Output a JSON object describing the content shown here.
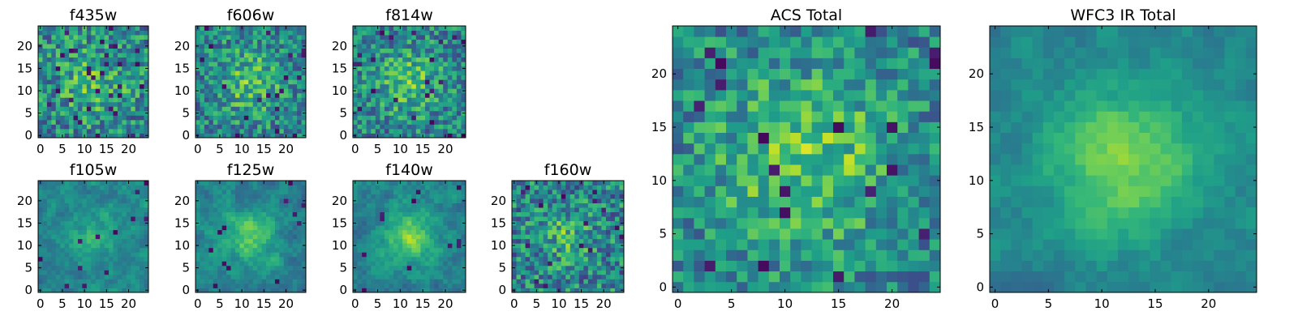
{
  "chart_data": [
    {
      "type": "heatmap",
      "title": "f435w",
      "xticks": [
        "0",
        "5",
        "10",
        "15",
        "20"
      ],
      "yticks": [
        "0",
        "5",
        "10",
        "15",
        "20"
      ],
      "xlim": [
        -0.5,
        24.5
      ],
      "ylim": [
        -0.5,
        24.5
      ],
      "grid_size": [
        25,
        25
      ],
      "colormap": "viridis",
      "description": "noisy pixel map with no clear central source",
      "values": []
    },
    {
      "type": "heatmap",
      "title": "f606w",
      "xticks": [
        "0",
        "5",
        "10",
        "15",
        "20"
      ],
      "yticks": [
        "0",
        "5",
        "10",
        "15",
        "20"
      ],
      "xlim": [
        -0.5,
        24.5
      ],
      "ylim": [
        -0.5,
        24.5
      ],
      "grid_size": [
        25,
        25
      ],
      "colormap": "viridis",
      "description": "noisy pixel map with faint central brightening",
      "values": []
    },
    {
      "type": "heatmap",
      "title": "f814w",
      "xticks": [
        "0",
        "5",
        "10",
        "15",
        "20"
      ],
      "yticks": [
        "0",
        "5",
        "10",
        "15",
        "20"
      ],
      "xlim": [
        -0.5,
        24.5
      ],
      "ylim": [
        -0.5,
        24.5
      ],
      "grid_size": [
        25,
        25
      ],
      "colormap": "viridis",
      "description": "noisy pixel map with faint central brightening",
      "values": []
    },
    {
      "type": "heatmap",
      "title": "f105w",
      "xticks": [
        "0",
        "5",
        "10",
        "15",
        "20"
      ],
      "yticks": [
        "0",
        "5",
        "10",
        "15",
        "20"
      ],
      "xlim": [
        -0.5,
        24.5
      ],
      "ylim": [
        -0.5,
        24.5
      ],
      "grid_size": [
        25,
        25
      ],
      "colormap": "viridis",
      "description": "smoother map with central source",
      "values": []
    },
    {
      "type": "heatmap",
      "title": "f125w",
      "xticks": [
        "0",
        "5",
        "10",
        "15",
        "20"
      ],
      "yticks": [
        "0",
        "5",
        "10",
        "15",
        "20"
      ],
      "xlim": [
        -0.5,
        24.5
      ],
      "ylim": [
        -0.5,
        24.5
      ],
      "grid_size": [
        25,
        25
      ],
      "colormap": "viridis",
      "description": "smoother map with bright central source",
      "values": []
    },
    {
      "type": "heatmap",
      "title": "f140w",
      "xticks": [
        "0",
        "5",
        "10",
        "15",
        "20"
      ],
      "yticks": [
        "0",
        "5",
        "10",
        "15",
        "20"
      ],
      "xlim": [
        -0.5,
        24.5
      ],
      "ylim": [
        -0.5,
        24.5
      ],
      "grid_size": [
        25,
        25
      ],
      "colormap": "viridis",
      "description": "smoother map with bright central source",
      "values": []
    },
    {
      "type": "heatmap",
      "title": "f160w",
      "xticks": [
        "0",
        "5",
        "10",
        "15",
        "20"
      ],
      "yticks": [
        "0",
        "5",
        "10",
        "15",
        "20"
      ],
      "xlim": [
        -0.5,
        24.5
      ],
      "ylim": [
        -0.5,
        24.5
      ],
      "grid_size": [
        25,
        25
      ],
      "colormap": "viridis",
      "description": "noisy map with moderate central source",
      "values": []
    },
    {
      "type": "heatmap",
      "title": "ACS Total",
      "xticks": [
        "0",
        "5",
        "10",
        "15",
        "20"
      ],
      "yticks": [
        "0",
        "5",
        "10",
        "15",
        "20"
      ],
      "xlim": [
        -0.5,
        24.5
      ],
      "ylim": [
        -0.5,
        24.5
      ],
      "grid_size": [
        25,
        25
      ],
      "colormap": "viridis",
      "description": "blocky map, brightest near (12,12)",
      "values": []
    },
    {
      "type": "heatmap",
      "title": "WFC3 IR Total",
      "xticks": [
        "0",
        "5",
        "10",
        "15",
        "20"
      ],
      "yticks": [
        "0",
        "5",
        "10",
        "15",
        "20"
      ],
      "xlim": [
        -0.5,
        24.5
      ],
      "ylim": [
        -0.5,
        24.5
      ],
      "grid_size": [
        25,
        25
      ],
      "colormap": "viridis",
      "description": "smooth map, brightest near (12,12), dark patch near (10,1)",
      "values": []
    }
  ]
}
